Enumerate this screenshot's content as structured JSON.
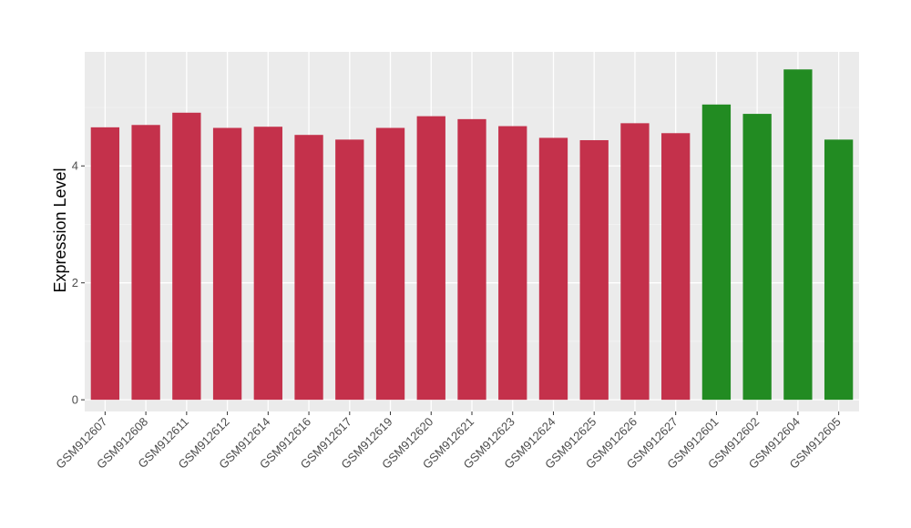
{
  "chart_data": {
    "type": "bar",
    "title": "",
    "xlabel": "",
    "ylabel": "Expression Level",
    "ylim": [
      -0.2,
      5.95
    ],
    "yticks": [
      0,
      2,
      4
    ],
    "ytick_labels": [
      "0",
      "2",
      "4"
    ],
    "grid": true,
    "colors": {
      "panel_background": "#ebebeb",
      "grid_major": "#ffffff",
      "grid_minor": "#f5f5f5",
      "group_1": "#c4314b",
      "group_2": "#228b22"
    },
    "categories": [
      "GSM912607",
      "GSM912608",
      "GSM912611",
      "GSM912612",
      "GSM912614",
      "GSM912616",
      "GSM912617",
      "GSM912619",
      "GSM912620",
      "GSM912621",
      "GSM912623",
      "GSM912624",
      "GSM912625",
      "GSM912626",
      "GSM912627",
      "GSM912601",
      "GSM912602",
      "GSM912604",
      "GSM912605"
    ],
    "values": [
      4.66,
      4.7,
      4.91,
      4.65,
      4.67,
      4.53,
      4.45,
      4.65,
      4.85,
      4.8,
      4.68,
      4.48,
      4.44,
      4.73,
      4.56,
      5.05,
      4.89,
      5.65,
      4.45
    ],
    "bar_colors": [
      "#c4314b",
      "#c4314b",
      "#c4314b",
      "#c4314b",
      "#c4314b",
      "#c4314b",
      "#c4314b",
      "#c4314b",
      "#c4314b",
      "#c4314b",
      "#c4314b",
      "#c4314b",
      "#c4314b",
      "#c4314b",
      "#c4314b",
      "#228b22",
      "#228b22",
      "#228b22",
      "#228b22"
    ]
  }
}
